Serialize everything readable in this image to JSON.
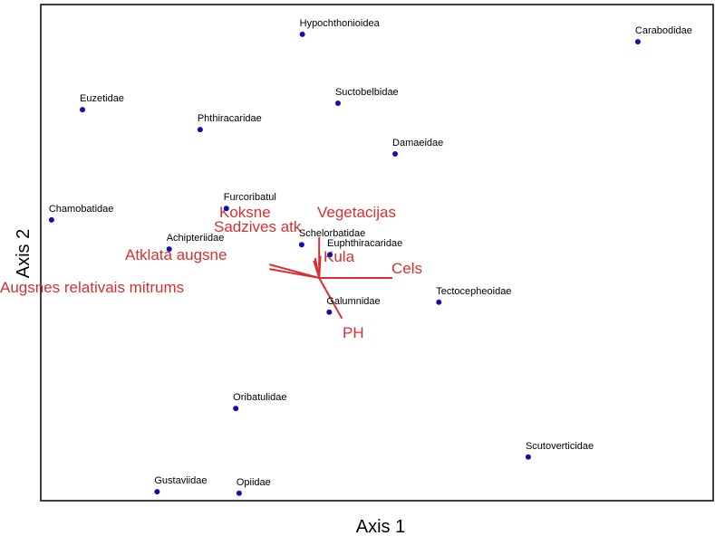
{
  "chart_data": {
    "type": "biplot",
    "x_label": "Axis 1",
    "y_label": "Axis 2",
    "xlim": [
      0,
      100
    ],
    "ylim": [
      0,
      100
    ],
    "point_color": "#1010b0",
    "vector_color": "#d83030",
    "points": [
      {
        "name": "Hypochthonioidea",
        "x": 38.9,
        "y": 94.0
      },
      {
        "name": "Carabodidae",
        "x": 88.8,
        "y": 92.5
      },
      {
        "name": "Euzetidae",
        "x": 6.2,
        "y": 78.8
      },
      {
        "name": "Suctobelbidae",
        "x": 44.2,
        "y": 80.1
      },
      {
        "name": "Phthiracaridae",
        "x": 23.7,
        "y": 74.8
      },
      {
        "name": "Damaeidae",
        "x": 52.7,
        "y": 69.9
      },
      {
        "name": "Chamobatidae",
        "x": 1.6,
        "y": 56.6
      },
      {
        "name": "Furcoribatul",
        "x": 27.6,
        "y": 58.9
      },
      {
        "name": "Achipteriidae",
        "x": 19.1,
        "y": 50.7
      },
      {
        "name": "Schelorbatidae",
        "x": 38.8,
        "y": 51.6
      },
      {
        "name": "Euphthiracaridae",
        "x": 43.0,
        "y": 49.6
      },
      {
        "name": "Tectocepheoidae",
        "x": 59.2,
        "y": 40.0
      },
      {
        "name": "Galumnidae",
        "x": 42.9,
        "y": 38.0
      },
      {
        "name": "Oribatulidae",
        "x": 29.0,
        "y": 18.6
      },
      {
        "name": "Scutoverticidae",
        "x": 72.5,
        "y": 8.8
      },
      {
        "name": "Gustaviidae",
        "x": 17.3,
        "y": 1.8
      },
      {
        "name": "Opiidae",
        "x": 29.5,
        "y": 1.5
      }
    ],
    "origin": [
      41.4,
      44.9
    ],
    "vectors": [
      {
        "name": "Koksne",
        "x": 40.8,
        "y": 48.9
      },
      {
        "name": "Vegetacijas",
        "x": 41.6,
        "y": 49.3
      },
      {
        "name": "Sadzives atk",
        "x": 40.6,
        "y": 48.4
      },
      {
        "name": "Kula",
        "x": 41.4,
        "y": 53.1
      },
      {
        "name": "Atklata augsne",
        "x": 34.0,
        "y": 47.6
      },
      {
        "name": "Augsnes relativais mitrums",
        "x": 34.0,
        "y": 46.7
      },
      {
        "name": "Cels",
        "x": 52.3,
        "y": 44.9
      },
      {
        "name": "PH",
        "x": 44.8,
        "y": 36.7
      }
    ]
  }
}
